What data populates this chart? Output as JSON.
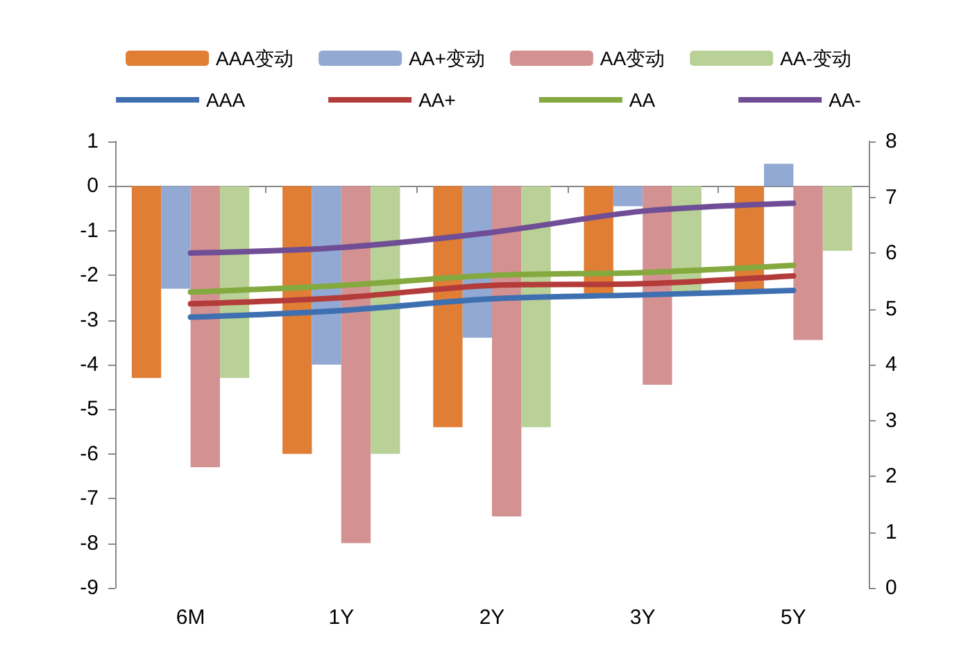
{
  "chart_data": {
    "type": "bar",
    "categories": [
      "6M",
      "1Y",
      "2Y",
      "3Y",
      "5Y"
    ],
    "series": [
      {
        "name": "AAA变动",
        "color": "#e07e35",
        "values": [
          -4.3,
          -6,
          -5.4,
          -2.4,
          -2.35
        ]
      },
      {
        "name": "AA+变动",
        "color": "#91a9d3",
        "values": [
          -2.3,
          -4,
          -3.4,
          -0.45,
          0.5
        ]
      },
      {
        "name": "AA变动",
        "color": "#d49191",
        "values": [
          -6.3,
          -8,
          -7.4,
          -4.45,
          -3.45
        ]
      },
      {
        "name": "AA-变动",
        "color": "#b9d196",
        "values": [
          -4.3,
          -6,
          -5.4,
          -2.4,
          -1.45
        ]
      },
      {
        "name": "AAA",
        "type": "line",
        "axis": "y2",
        "color": "#3e6fb0",
        "values": [
          4.85,
          4.97,
          5.18,
          5.25,
          5.33
        ]
      },
      {
        "name": "AA+",
        "type": "line",
        "axis": "y2",
        "color": "#b33c3a",
        "values": [
          5.09,
          5.2,
          5.42,
          5.45,
          5.59
        ]
      },
      {
        "name": "AA",
        "type": "line",
        "axis": "y2",
        "color": "#84a93e",
        "values": [
          5.3,
          5.42,
          5.6,
          5.65,
          5.78
        ]
      },
      {
        "name": "AA-",
        "type": "line",
        "axis": "y2",
        "color": "#6f4e96",
        "values": [
          6.0,
          6.1,
          6.37,
          6.75,
          6.89
        ]
      }
    ],
    "ylim": [
      -9,
      1
    ],
    "yticks": [
      -9,
      -8,
      -7,
      -6,
      -5,
      -4,
      -3,
      -2,
      -1,
      0,
      1
    ],
    "y2lim": [
      0,
      8
    ],
    "y2ticks": [
      0,
      1,
      2,
      3,
      4,
      5,
      6,
      7,
      8
    ],
    "legend": "top",
    "marker": "none",
    "line_style": "solid"
  }
}
